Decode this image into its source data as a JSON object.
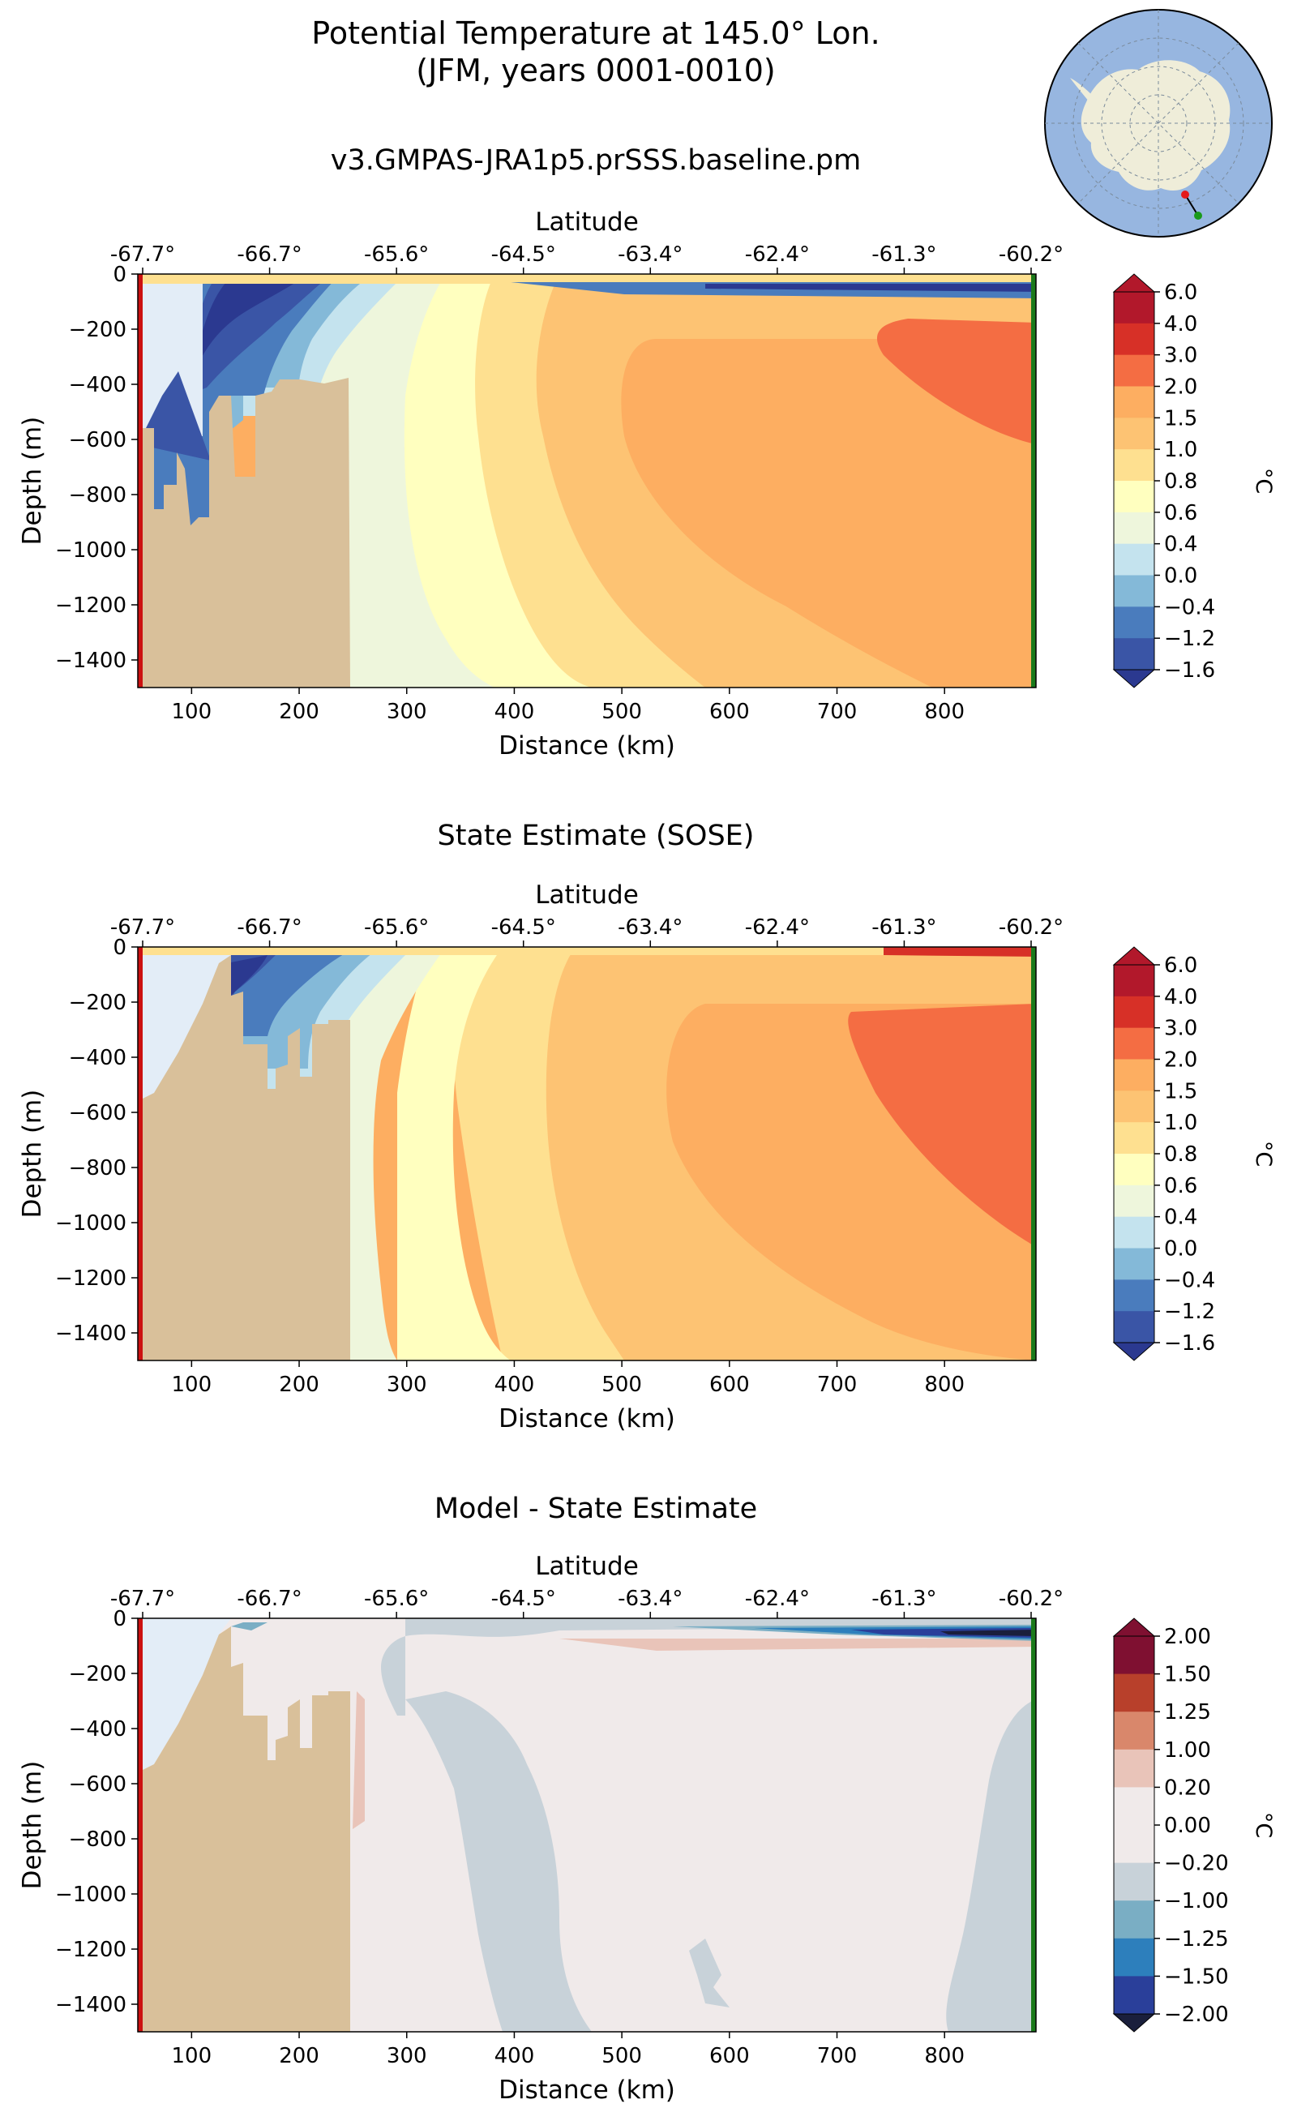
{
  "figure": {
    "title_line1": "Potential Temperature at 145.0° Lon.",
    "title_line2": "(JFM, years 0001-0010)",
    "run_name": "v3.GMPAS-JRA1p5.prSSS.baseline.pm",
    "inset_map": {
      "description_icon": "antarctica-polar-map-icon",
      "transect_start_color": "#e41a1c",
      "transect_end_color": "#1a9a1a"
    }
  },
  "colors": {
    "land": "#d9c09a",
    "start_marker": "#cc1111",
    "end_marker": "#1b7a1b"
  },
  "chart_data": [
    {
      "type": "heatmap",
      "title": "",
      "xlabel": "Distance (km)",
      "ylabel": "Depth (m)",
      "top_axis_label": "Latitude",
      "top_ticks": [
        "-67.7°",
        "-66.7°",
        "-65.6°",
        "-64.5°",
        "-63.4°",
        "-62.4°",
        "-61.3°",
        "-60.2°"
      ],
      "x_ticks": [
        100,
        200,
        300,
        400,
        500,
        600,
        700,
        800
      ],
      "y_ticks": [
        0,
        -200,
        -400,
        -600,
        -800,
        -1000,
        -1200,
        -1400
      ],
      "xlim": [
        50,
        885
      ],
      "ylim": [
        -1500,
        0
      ],
      "colorbar": {
        "label": "°C",
        "levels": [
          "6.0",
          "4.0",
          "3.0",
          "2.0",
          "1.5",
          "1.0",
          "0.8",
          "0.6",
          "0.4",
          "0.0",
          "-0.4",
          "-1.2",
          "-1.6"
        ],
        "colors": [
          "#b2182b",
          "#d73027",
          "#f46d43",
          "#fdae61",
          "#fdc373",
          "#fee090",
          "#ffffbf",
          "#eef6dc",
          "#c4e3ee",
          "#84b9d8",
          "#4a7cbd",
          "#3a55a6",
          "#2b3990",
          "#aa0e2a"
        ]
      }
    },
    {
      "type": "heatmap",
      "title": "State Estimate (SOSE)",
      "xlabel": "Distance (km)",
      "ylabel": "Depth (m)",
      "top_axis_label": "Latitude",
      "top_ticks": [
        "-67.7°",
        "-66.7°",
        "-65.6°",
        "-64.5°",
        "-63.4°",
        "-62.4°",
        "-61.3°",
        "-60.2°"
      ],
      "x_ticks": [
        100,
        200,
        300,
        400,
        500,
        600,
        700,
        800
      ],
      "y_ticks": [
        0,
        -200,
        -400,
        -600,
        -800,
        -1000,
        -1200,
        -1400
      ],
      "xlim": [
        50,
        885
      ],
      "ylim": [
        -1500,
        0
      ],
      "colorbar": {
        "label": "°C",
        "levels": [
          "6.0",
          "4.0",
          "3.0",
          "2.0",
          "1.5",
          "1.0",
          "0.8",
          "0.6",
          "0.4",
          "0.0",
          "-0.4",
          "-1.2",
          "-1.6"
        ],
        "colors": [
          "#b2182b",
          "#d73027",
          "#f46d43",
          "#fdae61",
          "#fdc373",
          "#fee090",
          "#ffffbf",
          "#eef6dc",
          "#c4e3ee",
          "#84b9d8",
          "#4a7cbd",
          "#3a55a6",
          "#2b3990",
          "#aa0e2a"
        ]
      }
    },
    {
      "type": "heatmap",
      "title": "Model - State Estimate",
      "xlabel": "Distance (km)",
      "ylabel": "Depth (m)",
      "top_axis_label": "Latitude",
      "top_ticks": [
        "-67.7°",
        "-66.7°",
        "-65.6°",
        "-64.5°",
        "-63.4°",
        "-62.4°",
        "-61.3°",
        "-60.2°"
      ],
      "x_ticks": [
        100,
        200,
        300,
        400,
        500,
        600,
        700,
        800
      ],
      "y_ticks": [
        0,
        -200,
        -400,
        -600,
        -800,
        -1000,
        -1200,
        -1400
      ],
      "xlim": [
        50,
        885
      ],
      "ylim": [
        -1500,
        0
      ],
      "colorbar": {
        "label": "°C",
        "levels": [
          "2.00",
          "1.50",
          "1.25",
          "1.00",
          "0.20",
          "0.00",
          "−0.20",
          "−1.00",
          "−1.25",
          "−1.50",
          "−2.00"
        ],
        "colors": [
          "#7f1031",
          "#b8402b",
          "#d9876b",
          "#e9c4b9",
          "#f0eaea",
          "#f0eaea",
          "#c8d2d9",
          "#7aaec4",
          "#2d7fbc",
          "#2a3f9a",
          "#1a1f3c",
          "#3a0a18"
        ]
      }
    }
  ]
}
